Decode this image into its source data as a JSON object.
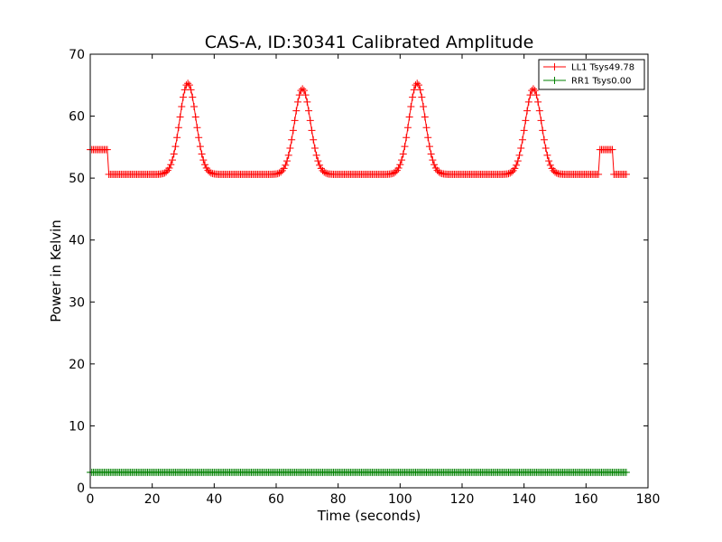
{
  "chart_data": {
    "type": "line",
    "title": "CAS-A, ID:30341 Calibrated Amplitude",
    "xlabel": "Time (seconds)",
    "ylabel": "Power in Kelvin",
    "xlim": [
      0,
      180
    ],
    "ylim": [
      0,
      70
    ],
    "xticks": [
      "0",
      "20",
      "40",
      "60",
      "80",
      "100",
      "120",
      "140",
      "160",
      "180"
    ],
    "yticks": [
      "0",
      "10",
      "20",
      "30",
      "40",
      "50",
      "60",
      "70"
    ],
    "grid": false,
    "legend_position": "top-right",
    "series": [
      {
        "name": "LL1 Tsys49.78",
        "color": "#ff0000",
        "marker": "+",
        "sample_interval": 0.5,
        "x_range": [
          0,
          173
        ],
        "baseline": 50.6,
        "high_segments": [
          {
            "x_start": 0,
            "x_end": 5.5,
            "value": 54.6
          },
          {
            "x_start": 164.5,
            "x_end": 168.5,
            "value": 54.6
          }
        ],
        "peaks": [
          {
            "x": 31.5,
            "y": 65.3
          },
          {
            "x": 68.5,
            "y": 64.4
          },
          {
            "x": 105.5,
            "y": 65.3
          },
          {
            "x": 143.0,
            "y": 64.4
          }
        ]
      },
      {
        "name": "RR1 Tsys0.00",
        "color": "#008000",
        "marker": "+",
        "sample_interval": 0.5,
        "x_range": [
          0,
          173
        ],
        "value": 2.5
      }
    ]
  }
}
